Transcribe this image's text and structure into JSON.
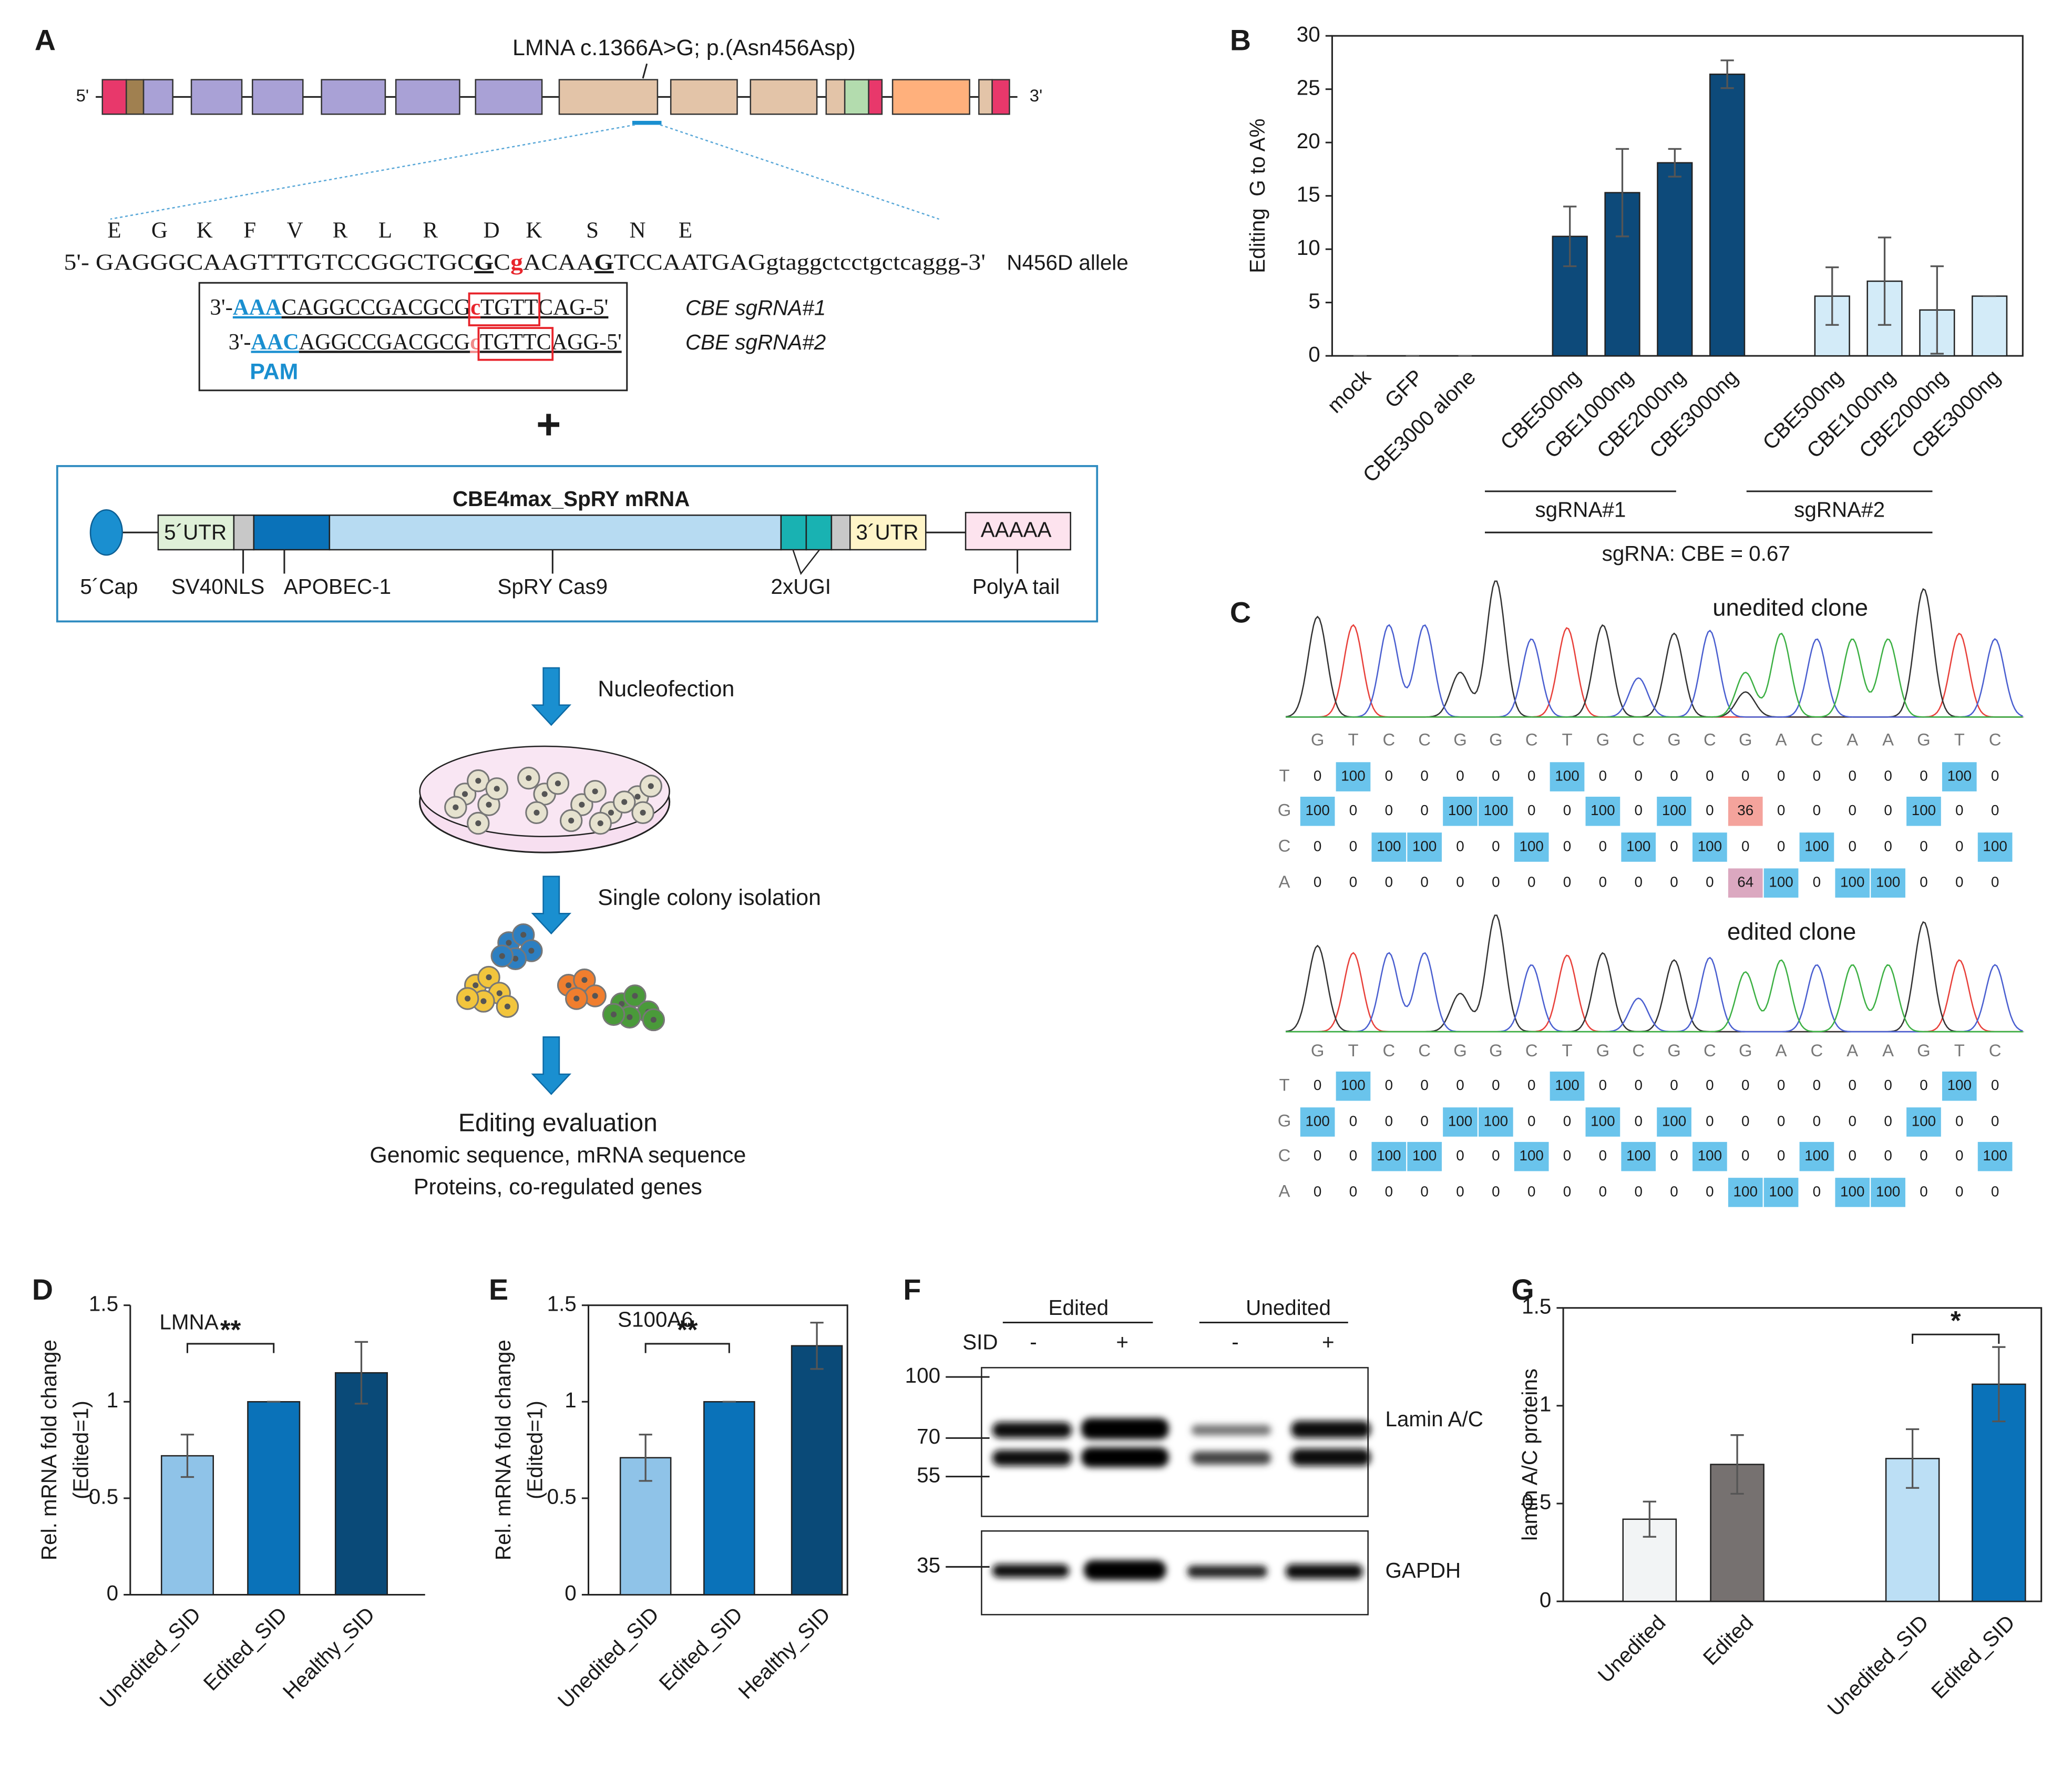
{
  "panel_labels": [
    "A",
    "B",
    "C",
    "D",
    "E",
    "F",
    "G"
  ],
  "panel_a": {
    "mutation": "LMNA c.1366A>G; p.(Asn456Asp)",
    "gene_ends": [
      "5'",
      "3'"
    ],
    "amino_acids": [
      "E",
      "G",
      "K",
      "F",
      "V",
      "R",
      "L",
      "R",
      "D",
      "K",
      "S",
      "N",
      "E"
    ],
    "sequence": [
      "5'- GAGGGCAAGTTTGTCCGGCTGC",
      "G",
      "C",
      "g",
      "ACAA",
      "G",
      "TCCAATGAG",
      "gtaggctcctgctcaggg-3'"
    ],
    "allele": "N456D allele",
    "guides": [
      {
        "sequence": [
          "3'-",
          "AAA",
          "CAGGCCGACGCG",
          "c",
          "TGTT",
          "CAG-5'"
        ],
        "name": "CBE sgRNA#1"
      },
      {
        "sequence": [
          "3'-",
          "AAC",
          "AGGCCGACGCG",
          "c",
          "TGTTC",
          "AGG-5'"
        ],
        "name": "CBE sgRNA#2"
      }
    ],
    "pam": "PAM",
    "plus": "+",
    "construct": {
      "title": "CBE4max_SpRY mRNA",
      "utr5": "5´UTR",
      "utr3": "3´UTR",
      "polya": "AAAAA",
      "labels": [
        "5´Cap",
        "SV40NLS",
        "APOBEC-1",
        "SpRY Cas9",
        "2xUGI",
        "PolyA tail"
      ]
    },
    "steps": [
      "Nucleofection",
      "Single colony isolation"
    ],
    "evaluation": {
      "title": "Editing evaluation",
      "lines": [
        "Genomic sequence, mRNA sequence",
        "Proteins, co-regulated genes"
      ]
    }
  },
  "chart_data": [
    {
      "type": "bar",
      "y_label": [
        "Editing  G to A%"
      ],
      "categories": [
        "mock",
        "GFP",
        "CBE3000 alone",
        "CBE500ng",
        "CBE1000ng",
        "CBE2000ng",
        "CBE3000ng",
        "CBE500ng",
        "CBE1000ng",
        "CBE2000ng",
        "CBE3000ng"
      ],
      "values": [
        0,
        0,
        0,
        11.2,
        15.3,
        18.1,
        26.4,
        5.6,
        7.0,
        4.3,
        5.6
      ],
      "errors": [
        0,
        0,
        0,
        2.8,
        4.1,
        1.3,
        1.3,
        2.7,
        4.1,
        4.1,
        0
      ],
      "colors": [
        "#0d4a7a",
        "#0d4a7a",
        "#0d4a7a",
        "#0d4a7a",
        "#0d4a7a",
        "#0d4a7a",
        "#0d4a7a",
        "#d3ebf8",
        "#d3ebf8",
        "#d3ebf8",
        "#d3ebf8"
      ],
      "ylim": [
        0,
        30
      ],
      "yticks": [
        0,
        5,
        10,
        15,
        20,
        25,
        30
      ],
      "box": true,
      "groups": [
        "sgRNA#1",
        "sgRNA#2"
      ],
      "group_note": "sgRNA: CBE = 0.67"
    },
    {
      "type": "bar",
      "y_label": [
        "Rel. mRNA fold change",
        "(Edited=1)"
      ],
      "label": "LMNA",
      "categories": [
        "Unedited_SID",
        "Edited_SID",
        "Healthy_SID"
      ],
      "values": [
        0.72,
        1.0,
        1.15
      ],
      "errors": [
        0.11,
        0,
        0.16
      ],
      "colors": [
        "#8fc3e8",
        "#0a72b9",
        "#0a4a78"
      ],
      "ylim": [
        0,
        1.5
      ],
      "yticks": [
        0,
        0.5,
        1,
        1.5
      ],
      "box": false,
      "significance": "**"
    },
    {
      "type": "bar",
      "y_label": [
        "Rel. mRNA fold change",
        "(Edited=1)"
      ],
      "label": "S100A6",
      "categories": [
        "Unedited_SID",
        "Edited_SID",
        "Healthy_SID"
      ],
      "values": [
        0.71,
        1.0,
        1.29
      ],
      "errors": [
        0.12,
        0,
        0.12
      ],
      "colors": [
        "#8fc3e8",
        "#0a72b9",
        "#0a4a78"
      ],
      "ylim": [
        0,
        1.5
      ],
      "yticks": [
        0,
        0.5,
        1,
        1.5
      ],
      "box": true,
      "significance": "**"
    },
    {
      "type": "bar",
      "y_label": [
        "lamin A/C proteins"
      ],
      "categories": [
        "Unedited",
        "Edited",
        "Unedited_SID",
        "Edited_SID"
      ],
      "values": [
        0.42,
        0.7,
        0.73,
        1.11
      ],
      "errors": [
        0.09,
        0.15,
        0.15,
        0.19
      ],
      "colors": [
        "#f2f4f5",
        "#767170",
        "#bcdff5",
        "#0a72b9"
      ],
      "ylim": [
        0,
        1.5
      ],
      "yticks": [
        0,
        0.5,
        1,
        1.5
      ],
      "box": true,
      "significance": "*"
    }
  ],
  "panel_c": {
    "highlight_color": "#6ac4ec",
    "trace_colors": {
      "G": "#333333",
      "T": "#e8403a",
      "C": "#4a5fd0",
      "A": "#3cb043"
    },
    "clones": [
      {
        "title": "unedited clone",
        "sequence": [
          "G",
          "T",
          "C",
          "C",
          "G",
          "G",
          "C",
          "T",
          "G",
          "C",
          "G",
          "C",
          "G",
          "A",
          "C",
          "A",
          "A",
          "G",
          "T",
          "C"
        ],
        "rows": [
          {
            "base": "T",
            "values": [
              0,
              100,
              0,
              0,
              0,
              0,
              0,
              100,
              0,
              0,
              0,
              0,
              0,
              0,
              0,
              0,
              0,
              0,
              100,
              0
            ]
          },
          {
            "base": "G",
            "values": [
              100,
              0,
              0,
              0,
              100,
              100,
              0,
              0,
              100,
              0,
              100,
              0,
              36,
              0,
              0,
              0,
              0,
              100,
              0,
              0
            ],
            "partial_color": "#f4a39c"
          },
          {
            "base": "C",
            "values": [
              0,
              0,
              100,
              100,
              0,
              0,
              100,
              0,
              0,
              100,
              0,
              100,
              0,
              0,
              100,
              0,
              0,
              0,
              0,
              100
            ]
          },
          {
            "base": "A",
            "values": [
              0,
              0,
              0,
              0,
              0,
              0,
              0,
              0,
              0,
              0,
              0,
              0,
              64,
              100,
              0,
              100,
              100,
              0,
              0,
              0
            ],
            "partial_color": "#dba8c0"
          }
        ]
      },
      {
        "title": "edited clone",
        "sequence": [
          "G",
          "T",
          "C",
          "C",
          "G",
          "G",
          "C",
          "T",
          "G",
          "C",
          "G",
          "C",
          "G",
          "A",
          "C",
          "A",
          "A",
          "G",
          "T",
          "C"
        ],
        "rows": [
          {
            "base": "T",
            "values": [
              0,
              100,
              0,
              0,
              0,
              0,
              0,
              100,
              0,
              0,
              0,
              0,
              0,
              0,
              0,
              0,
              0,
              0,
              100,
              0
            ]
          },
          {
            "base": "G",
            "values": [
              100,
              0,
              0,
              0,
              100,
              100,
              0,
              0,
              100,
              0,
              100,
              0,
              0,
              0,
              0,
              0,
              0,
              100,
              0,
              0
            ]
          },
          {
            "base": "C",
            "values": [
              0,
              0,
              100,
              100,
              0,
              0,
              100,
              0,
              0,
              100,
              0,
              100,
              0,
              0,
              100,
              0,
              0,
              0,
              0,
              100
            ]
          },
          {
            "base": "A",
            "values": [
              0,
              0,
              0,
              0,
              0,
              0,
              0,
              0,
              0,
              0,
              0,
              0,
              100,
              100,
              0,
              100,
              100,
              0,
              0,
              0
            ]
          }
        ]
      }
    ]
  },
  "panel_f": {
    "groups": [
      "Edited",
      "Unedited"
    ],
    "treatment": "SID",
    "lanes": [
      "-",
      "+",
      "-",
      "+"
    ],
    "markers": [
      100,
      70,
      55,
      35
    ],
    "proteins": [
      "Lamin A/C",
      "GAPDH"
    ]
  }
}
